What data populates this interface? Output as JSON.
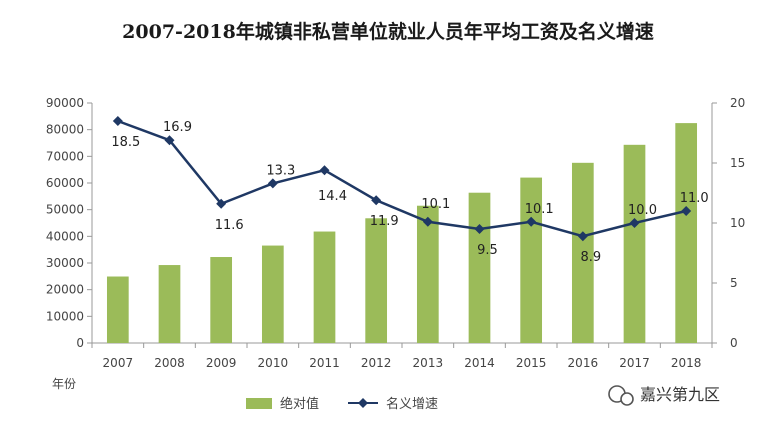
{
  "chart_data": {
    "type": "bar",
    "title": "2007-2018年城镇非私营单位就业人员年平均工资及名义增速",
    "xlabel": "年份",
    "categories": [
      "2007",
      "2008",
      "2009",
      "2010",
      "2011",
      "2012",
      "2013",
      "2014",
      "2015",
      "2016",
      "2017",
      "2018"
    ],
    "series": [
      {
        "name": "绝对值",
        "type": "bar",
        "axis": "left",
        "values": [
          24932,
          29229,
          32244,
          36539,
          41799,
          46769,
          51483,
          56360,
          62029,
          67569,
          74318,
          82461
        ]
      },
      {
        "name": "名义增速",
        "type": "line",
        "axis": "right",
        "values": [
          18.5,
          16.9,
          11.6,
          13.3,
          14.4,
          11.9,
          10.1,
          9.5,
          10.1,
          8.9,
          10.0,
          11.0
        ],
        "labels": [
          "18.5",
          "16.9",
          "11.6",
          "13.3",
          "14.4",
          "11.9",
          "10.1",
          "9.5",
          "10.1",
          "8.9",
          "10.0",
          "11.0"
        ]
      }
    ],
    "ylim_left": [
      0,
      90000
    ],
    "yticks_left": [
      "0",
      "10000",
      "20000",
      "30000",
      "40000",
      "50000",
      "60000",
      "70000",
      "80000",
      "90000"
    ],
    "ylim_right": [
      0,
      20
    ],
    "yticks_right": [
      "0",
      "5",
      "10",
      "15",
      "20"
    ],
    "grid": false,
    "legend_position": "bottom",
    "colors": {
      "bar": "#9bbb59",
      "line": "#1f3864",
      "marker": "#1f3864"
    }
  },
  "watermark": {
    "text": "嘉兴第九区",
    "icon": "wechat-icon"
  }
}
